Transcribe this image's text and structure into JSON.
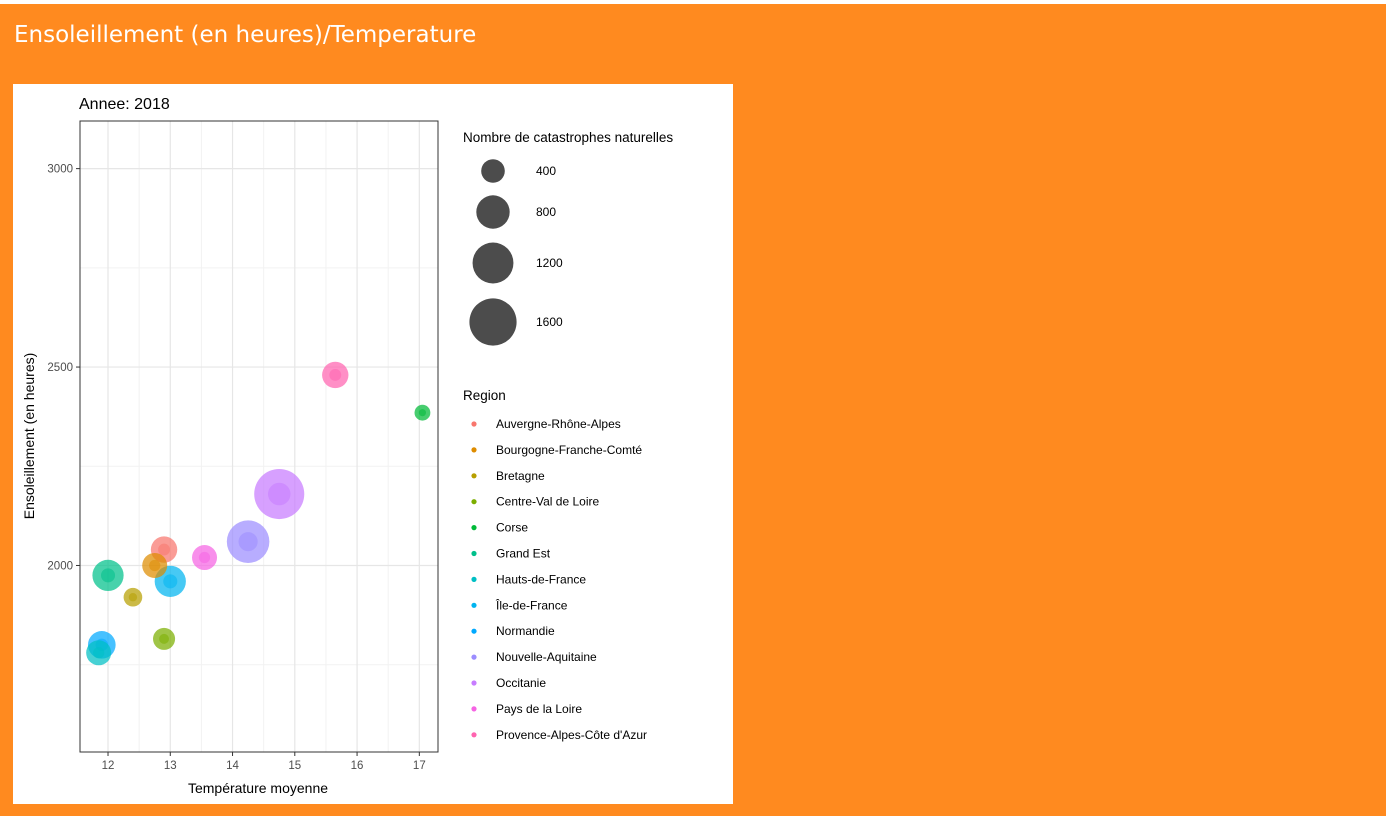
{
  "panel": {
    "title": "Ensoleillement (en heures)/Temperature",
    "background": "#FF8A1F"
  },
  "chart_data": {
    "type": "scatter",
    "subtitle": "Annee: 2018",
    "xlabel": "Température moyenne",
    "ylabel": "Ensoleillement (en heures)",
    "xlim": [
      11.55,
      17.3
    ],
    "ylim": [
      1530,
      3120
    ],
    "x_ticks": [
      12,
      13,
      14,
      15,
      16,
      17
    ],
    "y_ticks": [
      2000,
      2500,
      3000
    ],
    "grid": true,
    "size_legend": {
      "title": "Nombre de catastrophes naturelles",
      "values": [
        400,
        800,
        1200,
        1600
      ]
    },
    "color_legend": {
      "title": "Region",
      "position": "right"
    },
    "series": [
      {
        "name": "Auvergne-Rhône-Alpes",
        "color": "#F8766D",
        "x": 12.9,
        "y": 2040,
        "size": 500
      },
      {
        "name": "Bourgogne-Franche-Comté",
        "color": "#DE8C00",
        "x": 12.75,
        "y": 2000,
        "size": 450
      },
      {
        "name": "Bretagne",
        "color": "#B79F00",
        "x": 12.4,
        "y": 1920,
        "size": 250
      },
      {
        "name": "Centre-Val de Loire",
        "color": "#7CAE00",
        "x": 12.9,
        "y": 1815,
        "size": 350
      },
      {
        "name": "Corse",
        "color": "#00BA38",
        "x": 17.05,
        "y": 2385,
        "size": 180
      },
      {
        "name": "Grand Est",
        "color": "#00C08B",
        "x": 12.0,
        "y": 1975,
        "size": 700
      },
      {
        "name": "Hauts-de-France",
        "color": "#00BFC4",
        "x": 11.85,
        "y": 1780,
        "size": 450
      },
      {
        "name": "Île-de-France",
        "color": "#00B4F0",
        "x": 13.0,
        "y": 1960,
        "size": 700
      },
      {
        "name": "Normandie",
        "color": "#00A9FF",
        "x": 11.9,
        "y": 1800,
        "size": 550
      },
      {
        "name": "Nouvelle-Aquitaine",
        "color": "#9C8DFF",
        "x": 14.25,
        "y": 2060,
        "size": 1300
      },
      {
        "name": "Occitanie",
        "color": "#C77CFF",
        "x": 14.75,
        "y": 2180,
        "size": 1800
      },
      {
        "name": "Pays de la Loire",
        "color": "#F564E3",
        "x": 13.55,
        "y": 2020,
        "size": 450
      },
      {
        "name": "Provence-Alpes-Côte d'Azur",
        "color": "#FF64B0",
        "x": 15.65,
        "y": 2480,
        "size": 500
      }
    ]
  }
}
